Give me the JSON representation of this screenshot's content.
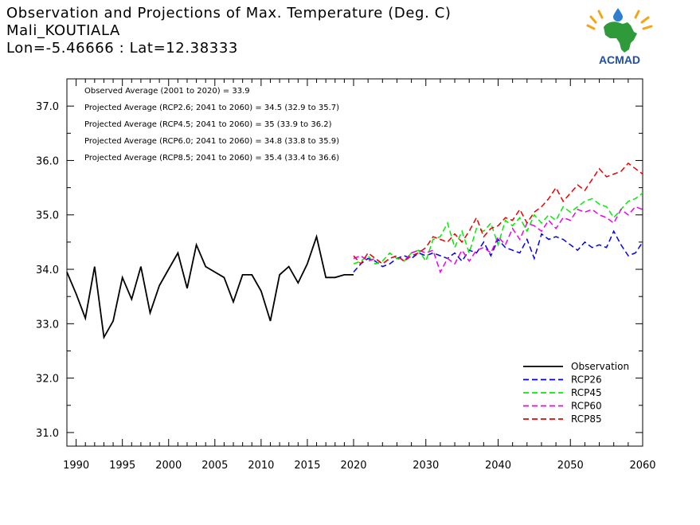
{
  "header": {
    "title": "Observation and Projections of Max. Temperature (Deg. C)",
    "station": "Mali_KOUTIALA",
    "coords": "Lon=-5.46666 : Lat=12.38333"
  },
  "logo": {
    "text": "ACMAD",
    "icon": "africa-map-logo-icon"
  },
  "annotations": [
    "Observed Average (2001 to 2020) = 33.9",
    "Projected Average (RCP2.6; 2041 to 2060) = 34.5 (32.9 to 35.7)",
    "Projected Average (RCP4.5; 2041 to 2060) = 35 (33.9 to 36.2)",
    "Projected Average (RCP6.0; 2041 to 2060) = 34.8 (33.8 to 35.9)",
    "Projected Average (RCP8.5; 2041 to 2060) = 35.4 (33.4 to 36.6)"
  ],
  "chart_data": {
    "type": "line",
    "ylim": [
      30.75,
      37.5
    ],
    "yticks": [
      31.0,
      32.0,
      33.0,
      34.0,
      35.0,
      36.0,
      37.0
    ],
    "xticks": [
      1990,
      1995,
      2000,
      2005,
      2010,
      2015,
      2020,
      2030,
      2040,
      2050,
      2060
    ],
    "xaxis_note": "piecewise axis: 1990-2020 and 2020-2060 segments have different scales",
    "grid": false,
    "legend_position": "bottom-right",
    "series": [
      {
        "name": "Observation",
        "color": "#000000",
        "dashed": false,
        "x": [
          1989,
          1990,
          1991,
          1992,
          1993,
          1994,
          1995,
          1996,
          1997,
          1998,
          1999,
          2000,
          2001,
          2002,
          2003,
          2004,
          2005,
          2006,
          2007,
          2008,
          2009,
          2010,
          2011,
          2012,
          2013,
          2014,
          2015,
          2016,
          2017,
          2018,
          2019,
          2020
        ],
        "values": [
          33.95,
          33.55,
          33.1,
          34.05,
          32.75,
          33.05,
          33.85,
          33.45,
          34.05,
          33.2,
          33.7,
          34.0,
          34.3,
          33.65,
          34.45,
          34.05,
          33.95,
          33.85,
          33.4,
          33.9,
          33.9,
          33.6,
          33.05,
          33.9,
          34.05,
          33.75,
          34.1,
          34.6,
          33.85,
          33.85,
          33.9,
          33.9
        ]
      },
      {
        "name": "RCP26",
        "color": "#0000ee",
        "dashed": true,
        "x": [
          2020,
          2021,
          2022,
          2023,
          2024,
          2025,
          2026,
          2027,
          2028,
          2029,
          2030,
          2031,
          2032,
          2033,
          2034,
          2035,
          2036,
          2037,
          2038,
          2039,
          2040,
          2041,
          2042,
          2043,
          2044,
          2045,
          2046,
          2047,
          2048,
          2049,
          2050,
          2051,
          2052,
          2053,
          2054,
          2055,
          2056,
          2057,
          2058,
          2059,
          2060
        ],
        "values": [
          33.95,
          34.1,
          34.2,
          34.15,
          34.05,
          34.1,
          34.2,
          34.25,
          34.2,
          34.3,
          34.25,
          34.3,
          34.25,
          34.2,
          34.3,
          34.15,
          34.35,
          34.3,
          34.5,
          34.25,
          34.55,
          34.4,
          34.35,
          34.3,
          34.55,
          34.2,
          34.65,
          34.55,
          34.6,
          34.55,
          34.45,
          34.35,
          34.5,
          34.4,
          34.45,
          34.4,
          34.7,
          34.45,
          34.25,
          34.3,
          34.5
        ]
      },
      {
        "name": "RCP45",
        "color": "#00ee00",
        "dashed": true,
        "x": [
          2020,
          2021,
          2022,
          2023,
          2024,
          2025,
          2026,
          2027,
          2028,
          2029,
          2030,
          2031,
          2032,
          2033,
          2034,
          2035,
          2036,
          2037,
          2038,
          2039,
          2040,
          2041,
          2042,
          2043,
          2044,
          2045,
          2046,
          2047,
          2048,
          2049,
          2050,
          2051,
          2052,
          2053,
          2054,
          2055,
          2056,
          2057,
          2058,
          2059,
          2060
        ],
        "values": [
          34.1,
          34.15,
          34.25,
          34.1,
          34.15,
          34.3,
          34.2,
          34.15,
          34.3,
          34.35,
          34.15,
          34.55,
          34.6,
          34.85,
          34.4,
          34.7,
          34.3,
          34.75,
          34.7,
          34.85,
          34.45,
          34.9,
          34.8,
          34.95,
          34.7,
          35.0,
          34.85,
          35.0,
          34.9,
          35.15,
          35.05,
          35.15,
          35.25,
          35.3,
          35.2,
          35.15,
          34.95,
          35.1,
          35.25,
          35.3,
          35.4
        ]
      },
      {
        "name": "RCP60",
        "color": "#ee00ee",
        "dashed": true,
        "x": [
          2020,
          2021,
          2022,
          2023,
          2024,
          2025,
          2026,
          2027,
          2028,
          2029,
          2030,
          2031,
          2032,
          2033,
          2034,
          2035,
          2036,
          2037,
          2038,
          2039,
          2040,
          2041,
          2042,
          2043,
          2044,
          2045,
          2046,
          2047,
          2048,
          2049,
          2050,
          2051,
          2052,
          2053,
          2054,
          2055,
          2056,
          2057,
          2058,
          2059,
          2060
        ],
        "values": [
          34.2,
          34.25,
          34.15,
          34.2,
          34.1,
          34.2,
          34.25,
          34.15,
          34.3,
          34.35,
          34.3,
          34.35,
          33.95,
          34.2,
          34.1,
          34.35,
          34.15,
          34.35,
          34.4,
          34.3,
          34.6,
          34.45,
          34.75,
          34.55,
          34.85,
          34.8,
          34.7,
          34.9,
          34.75,
          34.95,
          34.9,
          35.1,
          35.05,
          35.1,
          35.0,
          34.95,
          34.85,
          35.1,
          35.0,
          35.15,
          35.1
        ]
      },
      {
        "name": "RCP85",
        "color": "#ee0000",
        "dashed": true,
        "x": [
          2020,
          2021,
          2022,
          2023,
          2024,
          2025,
          2026,
          2027,
          2028,
          2029,
          2030,
          2031,
          2032,
          2033,
          2034,
          2035,
          2036,
          2037,
          2038,
          2039,
          2040,
          2041,
          2042,
          2043,
          2044,
          2045,
          2046,
          2047,
          2048,
          2049,
          2050,
          2051,
          2052,
          2053,
          2054,
          2055,
          2056,
          2057,
          2058,
          2059,
          2060
        ],
        "values": [
          34.25,
          34.1,
          34.3,
          34.2,
          34.1,
          34.2,
          34.25,
          34.15,
          34.25,
          34.3,
          34.4,
          34.6,
          34.55,
          34.5,
          34.65,
          34.5,
          34.7,
          34.95,
          34.6,
          34.75,
          34.8,
          34.95,
          34.9,
          35.1,
          34.85,
          35.05,
          35.15,
          35.3,
          35.5,
          35.25,
          35.4,
          35.55,
          35.45,
          35.65,
          35.85,
          35.7,
          35.75,
          35.8,
          35.95,
          35.85,
          35.75
        ]
      }
    ]
  }
}
